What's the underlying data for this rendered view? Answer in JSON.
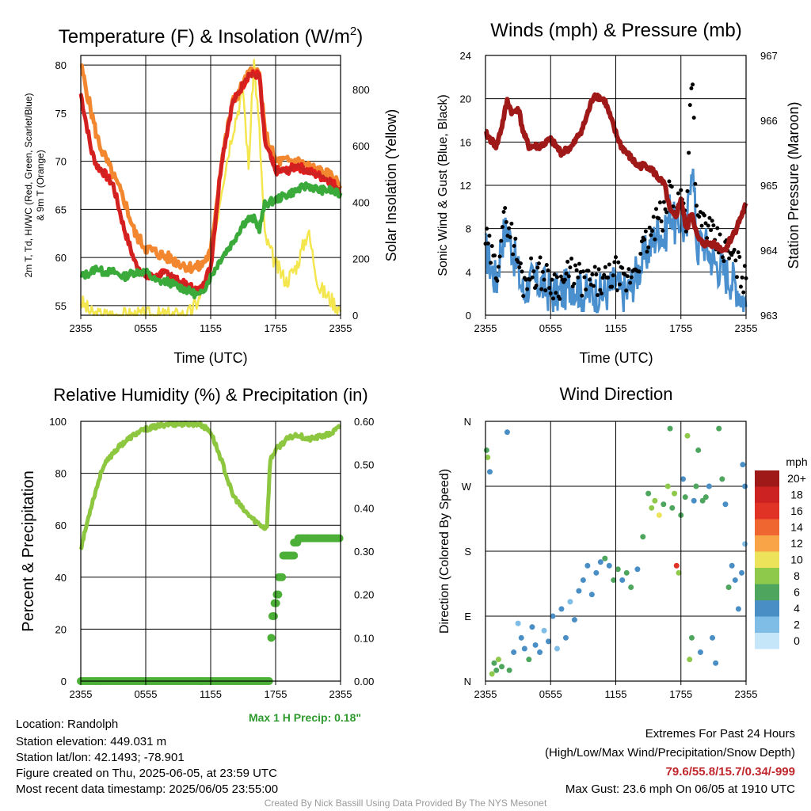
{
  "chart_data": [
    {
      "type": "line",
      "title": "Temperature (F) & Insolation (W/m²)",
      "title_main": "Temperature (F) & Insolation (W/m",
      "title_sup": "2",
      "title_end": ")",
      "xlabel": "Time (UTC)",
      "ylabel_left_line1": "2m T, Td, HI/WC (Red, Green, Scarlet/Blue)",
      "ylabel_left_line2": "& 9m T (Orange)",
      "ylabel_right": "Solar Insolation (Yellow)",
      "x_ticks": [
        "2355",
        "0555",
        "1155",
        "1755",
        "2355"
      ],
      "ylim_left": [
        54,
        81
      ],
      "y_ticks_left": [
        55,
        60,
        65,
        70,
        75,
        80
      ],
      "ylim_right": [
        0,
        920
      ],
      "y_ticks_right": [
        0,
        200,
        400,
        600,
        800
      ],
      "x_hours": [
        0,
        1,
        1.5,
        2,
        3,
        4,
        5,
        6,
        7,
        8,
        9,
        10,
        11,
        12,
        13,
        14,
        15,
        15.5,
        16,
        16.5,
        17,
        18,
        19,
        20,
        21,
        22,
        23,
        24
      ],
      "series": [
        {
          "name": "2m T",
          "color": "#cc2222",
          "values": [
            77,
            71,
            69.5,
            69,
            67.5,
            63,
            59.5,
            58,
            58,
            58.5,
            57.5,
            57,
            56.5,
            59,
            70,
            76,
            78,
            79,
            79,
            79,
            72,
            69,
            69,
            69.5,
            69,
            68.5,
            68,
            67
          ]
        },
        {
          "name": "Td",
          "color": "#3aaa3a",
          "values": [
            58,
            58.5,
            59,
            58.5,
            58.5,
            58,
            58.5,
            58.5,
            57.5,
            57.5,
            57,
            56.5,
            56,
            58,
            60,
            61.5,
            63.5,
            64,
            64,
            63,
            65.5,
            66,
            66.5,
            67,
            67.5,
            67,
            67,
            66.5
          ]
        },
        {
          "name": "HI/WC",
          "color": "#e21d1d",
          "values": [
            77,
            71,
            69.5,
            69,
            67.5,
            63,
            59.5,
            58,
            58,
            58.5,
            57.5,
            57,
            56.5,
            59,
            70,
            76,
            78,
            79,
            79,
            79,
            72,
            69,
            69,
            69.5,
            69,
            68.5,
            68,
            67
          ]
        },
        {
          "name": "9m T",
          "color": "#f38730",
          "values": [
            80,
            75,
            72.5,
            71,
            68.5,
            66,
            62.5,
            61,
            60.5,
            60,
            59.5,
            59,
            59,
            60.5,
            70,
            76,
            78,
            79,
            79.5,
            79,
            73,
            70,
            70,
            70,
            69.5,
            69,
            68.5,
            67.5
          ]
        },
        {
          "name": "Solar Insolation",
          "color": "#f3e64e",
          "axis": "right",
          "values": [
            50,
            5,
            0,
            0,
            0,
            0,
            0,
            0,
            0,
            0,
            0,
            5,
            60,
            180,
            450,
            650,
            800,
            520,
            900,
            650,
            280,
            180,
            120,
            180,
            300,
            100,
            60,
            20
          ]
        }
      ]
    },
    {
      "type": "line",
      "title": "Winds (mph) & Pressure (mb)",
      "xlabel": "Time (UTC)",
      "ylabel_left": "Sonic Wind & Gust (Blue, Black)",
      "ylabel_right": "Station Pressure (Maroon)",
      "x_ticks": [
        "2355",
        "0555",
        "1155",
        "1755",
        "2355"
      ],
      "ylim_left": [
        0,
        24
      ],
      "y_ticks_left": [
        0,
        4,
        8,
        12,
        16,
        20,
        24
      ],
      "ylim_right": [
        963,
        967
      ],
      "y_ticks_right": [
        963,
        964,
        965,
        966,
        967
      ],
      "x_hours": [
        0,
        1,
        1.5,
        2,
        2.5,
        3,
        3.5,
        4,
        5,
        6,
        7,
        8,
        9,
        10,
        11,
        12,
        12.5,
        13,
        14,
        15,
        16,
        16.5,
        17,
        17.5,
        18,
        18.5,
        19,
        19.5,
        20,
        21,
        22,
        23,
        24
      ],
      "series": [
        {
          "name": "Sonic Wind",
          "color": "#4a90cf",
          "values": [
            6,
            3,
            7,
            8,
            6,
            4,
            2,
            3,
            3,
            2,
            2,
            3,
            2,
            2,
            2,
            3,
            2,
            2,
            4,
            6,
            8,
            7,
            10,
            8,
            9,
            7,
            15,
            6,
            7,
            5,
            4,
            3,
            1
          ]
        },
        {
          "name": "Gust",
          "color": "#000000",
          "values": [
            7,
            4,
            8,
            9,
            7,
            5,
            3,
            4,
            4,
            3,
            3,
            4,
            3,
            3,
            3,
            4,
            3,
            3,
            5,
            7,
            9,
            9,
            12,
            10,
            11,
            9,
            23.6,
            8,
            9,
            7,
            6,
            5,
            3
          ]
        },
        {
          "name": "Station Pressure",
          "color": "#a01919",
          "axis": "right",
          "values": [
            965.8,
            965.6,
            965.9,
            966.3,
            966.1,
            966.2,
            965.8,
            965.6,
            965.6,
            965.7,
            965.5,
            965.6,
            965.9,
            966.4,
            966.3,
            965.8,
            965.6,
            965.5,
            965.3,
            965.3,
            965.1,
            965.0,
            964.6,
            964.5,
            964.8,
            964.3,
            964.6,
            964.2,
            964.1,
            964.1,
            964.0,
            964.3,
            964.7
          ]
        }
      ]
    },
    {
      "type": "line",
      "title": "Relative Humidity (%) & Precipitation (in)",
      "ylabel_left": "Percent & Precipitation",
      "x_ticks": [
        "2355",
        "0555",
        "1155",
        "1755",
        "2355"
      ],
      "ylim_left": [
        0,
        100
      ],
      "y_ticks_left": [
        0,
        20,
        40,
        60,
        80,
        100
      ],
      "ylim_right": [
        0,
        0.6
      ],
      "y_ticks_right": [
        "0.00",
        "0.10",
        "0.20",
        "0.30",
        "0.40",
        "0.50",
        "0.60"
      ],
      "x_hours": [
        0,
        1,
        2,
        3,
        4,
        5,
        6,
        7,
        8,
        9,
        10,
        11,
        12,
        13,
        14,
        15,
        16,
        17,
        17.2,
        17.5,
        18,
        19,
        20,
        21,
        22,
        23,
        24
      ],
      "series": [
        {
          "name": "Relative Humidity",
          "color": "#8dc63f",
          "values": [
            51,
            68,
            82,
            88,
            92,
            95,
            97,
            98,
            99,
            99,
            99,
            99,
            96,
            85,
            72,
            66,
            62,
            59,
            60,
            85,
            89,
            93,
            95,
            93,
            94,
            95,
            98
          ]
        }
      ],
      "precip_color": "#4caf38",
      "precip_x_hours": [
        17.6,
        17.7,
        17.9,
        18.1,
        18.3,
        18.7,
        19.1,
        19.4,
        19.7,
        20.1,
        20.5,
        21,
        22,
        23,
        24
      ],
      "precip_values": [
        0.1,
        0.15,
        0.18,
        0.2,
        0.24,
        0.29,
        0.29,
        0.29,
        0.32,
        0.33,
        0.33,
        0.33,
        0.33,
        0.33,
        0.33
      ],
      "precip_zero_until_hour": 17.5,
      "annotation": "Max 1 H Precip: 0.18\""
    },
    {
      "type": "scatter",
      "title": "Wind Direction",
      "ylabel_left": "Direction (Colored By Speed)",
      "x_ticks": [
        "2355",
        "0555",
        "1155",
        "1755",
        "2355"
      ],
      "y_ticks_left": [
        "N",
        "E",
        "S",
        "W",
        "N"
      ],
      "ylim_left": [
        0,
        360
      ],
      "colorbar_title": "mph",
      "colorbar_labels": [
        "20+",
        "18",
        "16",
        "14",
        "12",
        "10",
        "8",
        "6",
        "4",
        "2",
        "0"
      ],
      "colorbar_colors": [
        "#a01919",
        "#cc2222",
        "#e03326",
        "#f06630",
        "#f8a447",
        "#ece35a",
        "#8fc94c",
        "#4ea55e",
        "#4a8ec6",
        "#7fbde6",
        "#c5e6f8"
      ],
      "points_hour_dir_speed": [
        [
          0.1,
          320,
          6
        ],
        [
          0.2,
          310,
          7
        ],
        [
          0.4,
          290,
          4
        ],
        [
          0.6,
          10,
          7
        ],
        [
          0.8,
          25,
          5
        ],
        [
          1.0,
          15,
          6
        ],
        [
          1.2,
          30,
          7
        ],
        [
          1.5,
          20,
          6
        ],
        [
          2.0,
          345,
          3
        ],
        [
          2.2,
          15,
          5
        ],
        [
          2.6,
          40,
          4
        ],
        [
          3.0,
          80,
          2
        ],
        [
          3.3,
          60,
          3
        ],
        [
          3.6,
          45,
          4
        ],
        [
          4.0,
          30,
          5
        ],
        [
          4.3,
          75,
          3
        ],
        [
          4.6,
          50,
          4
        ],
        [
          5.0,
          40,
          3
        ],
        [
          5.4,
          70,
          2
        ],
        [
          5.8,
          55,
          4
        ],
        [
          6.2,
          90,
          3
        ],
        [
          6.6,
          45,
          2
        ],
        [
          7.0,
          100,
          3
        ],
        [
          7.4,
          60,
          4
        ],
        [
          7.8,
          110,
          2
        ],
        [
          8.2,
          85,
          3
        ],
        [
          8.6,
          125,
          4
        ],
        [
          9.0,
          140,
          3
        ],
        [
          9.4,
          160,
          4
        ],
        [
          9.8,
          120,
          3
        ],
        [
          10.2,
          150,
          4
        ],
        [
          10.6,
          165,
          4
        ],
        [
          11.0,
          170,
          5
        ],
        [
          11.4,
          160,
          4
        ],
        [
          11.8,
          140,
          6
        ],
        [
          12.2,
          155,
          5
        ],
        [
          12.6,
          140,
          4
        ],
        [
          13.0,
          150,
          5
        ],
        [
          13.4,
          130,
          6
        ],
        [
          14.0,
          155,
          4
        ],
        [
          14.5,
          200,
          5
        ],
        [
          15.0,
          260,
          6
        ],
        [
          15.3,
          240,
          8
        ],
        [
          15.6,
          250,
          7
        ],
        [
          16.0,
          230,
          10
        ],
        [
          16.4,
          245,
          6
        ],
        [
          16.8,
          270,
          7
        ],
        [
          17.0,
          350,
          6
        ],
        [
          17.2,
          240,
          5
        ],
        [
          17.4,
          260,
          8
        ],
        [
          17.6,
          160,
          16
        ],
        [
          17.8,
          150,
          7
        ],
        [
          18.0,
          230,
          5
        ],
        [
          18.2,
          280,
          4
        ],
        [
          18.4,
          255,
          6
        ],
        [
          18.6,
          340,
          8
        ],
        [
          18.8,
          30,
          7
        ],
        [
          19.0,
          60,
          5
        ],
        [
          19.2,
          250,
          4
        ],
        [
          19.4,
          270,
          6
        ],
        [
          19.6,
          320,
          5
        ],
        [
          19.8,
          40,
          4
        ],
        [
          20.0,
          250,
          6
        ],
        [
          20.3,
          255,
          5
        ],
        [
          20.6,
          270,
          4
        ],
        [
          20.9,
          60,
          3
        ],
        [
          21.2,
          25,
          4
        ],
        [
          21.5,
          350,
          5
        ],
        [
          21.8,
          280,
          6
        ],
        [
          22.1,
          245,
          4
        ],
        [
          22.4,
          130,
          5
        ],
        [
          22.7,
          160,
          4
        ],
        [
          23.0,
          140,
          3
        ],
        [
          23.3,
          100,
          4
        ],
        [
          23.6,
          150,
          3
        ],
        [
          23.9,
          190,
          2
        ],
        [
          23.7,
          300,
          4
        ],
        [
          23.9,
          270,
          3
        ]
      ]
    }
  ],
  "station": {
    "location": "Location: Randolph",
    "elevation": "Station elevation: 449.031 m",
    "latlon": "Station lat/lon: 42.1493; -78.901",
    "created": "Figure created on Thu, 2025-06-05, at 23:59 UTC",
    "recent": "Most recent data timestamp: 2025/06/05 23:55:00"
  },
  "extremes": {
    "title": "Extremes For Past 24 Hours",
    "subtitle": "(High/Low/Max Wind/Precipitation/Snow Depth)",
    "values": "79.6/55.8/15.7/0.34/-999",
    "values_color": "#c0272d",
    "gust": "Max Gust: 23.6 mph On 06/05 at 1910 UTC"
  },
  "credit": "Created By Nick Bassill Using Data Provided By The NYS Mesonet"
}
